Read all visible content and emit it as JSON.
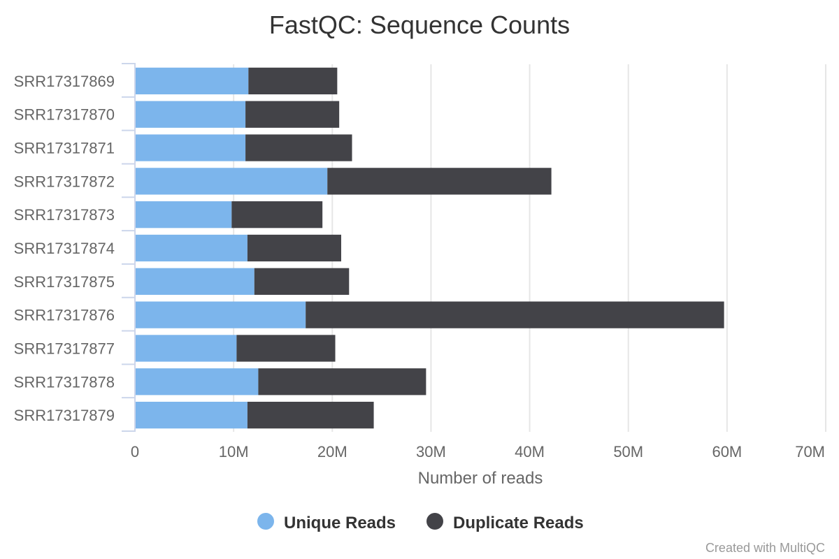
{
  "chart_data": {
    "type": "bar",
    "orientation": "horizontal",
    "stacked": true,
    "title": "FastQC: Sequence Counts",
    "xlabel": "Number of reads",
    "ylabel": "",
    "xlim": [
      0,
      70000000
    ],
    "x_ticks": [
      0,
      10000000,
      20000000,
      30000000,
      40000000,
      50000000,
      60000000,
      70000000
    ],
    "x_tick_labels": [
      "0",
      "10M",
      "20M",
      "30M",
      "40M",
      "50M",
      "60M",
      "70M"
    ],
    "grid": "vertical",
    "legend_placement": "bottom",
    "categories": [
      "SRR17317869",
      "SRR17317870",
      "SRR17317871",
      "SRR17317872",
      "SRR17317873",
      "SRR17317874",
      "SRR17317875",
      "SRR17317876",
      "SRR17317877",
      "SRR17317878",
      "SRR17317879"
    ],
    "series": [
      {
        "name": "Unique Reads",
        "color": "#7cb5ec",
        "values": [
          11500000,
          11200000,
          11200000,
          19500000,
          9800000,
          11400000,
          12100000,
          17300000,
          10300000,
          12500000,
          11400000
        ]
      },
      {
        "name": "Duplicate Reads",
        "color": "#434348",
        "values": [
          9000000,
          9500000,
          10800000,
          22700000,
          9200000,
          9500000,
          9600000,
          42400000,
          10000000,
          17000000,
          12800000
        ]
      }
    ],
    "credits": "Created with MultiQC"
  }
}
